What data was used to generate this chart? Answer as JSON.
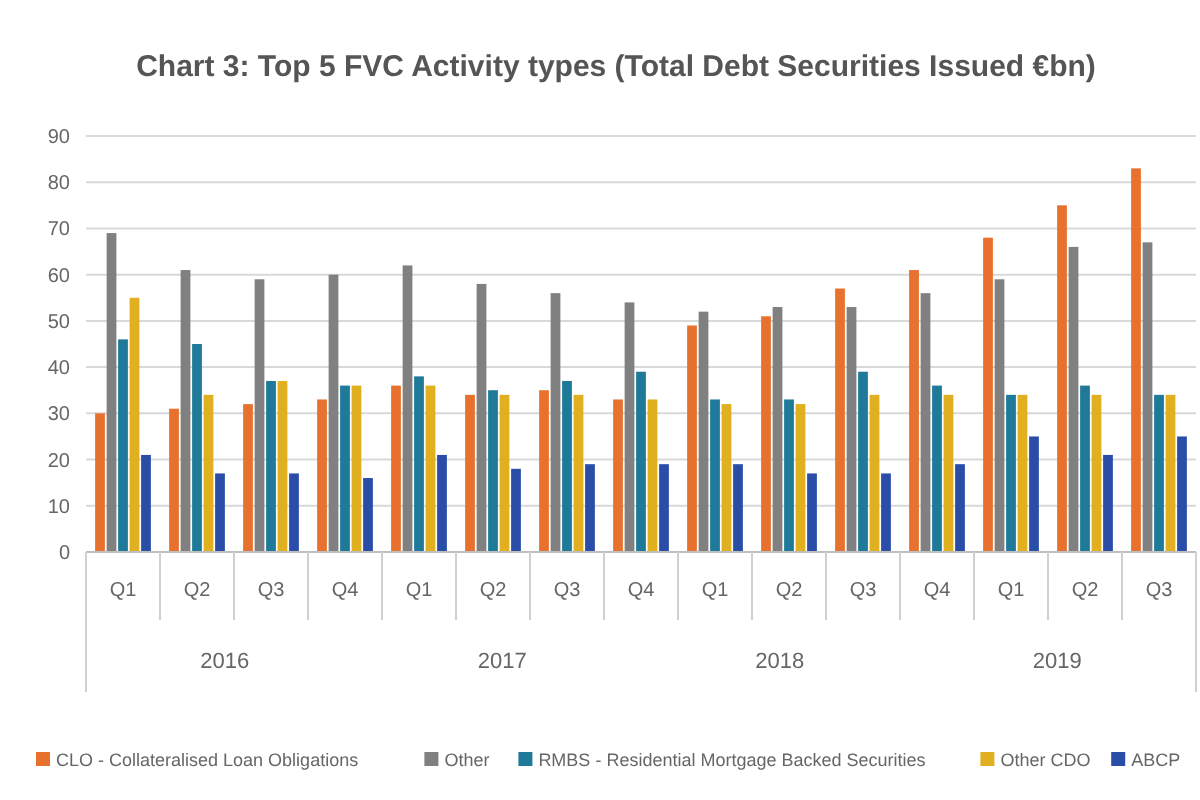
{
  "chart_data": {
    "type": "bar",
    "title": "Chart 3: Top 5 FVC Activity types (Total Debt Securities Issued €bn)",
    "categories": [
      "Q1",
      "Q2",
      "Q3",
      "Q4",
      "Q1",
      "Q2",
      "Q3",
      "Q4",
      "Q1",
      "Q2",
      "Q3",
      "Q4",
      "Q1",
      "Q2",
      "Q3"
    ],
    "annotations": [
      "2016",
      "2017",
      "2018",
      "2019"
    ],
    "series": [
      {
        "name": "CLO - Collateralised Loan Obligations",
        "color": "#e8712e",
        "values": [
          30,
          31,
          32,
          33,
          36,
          34,
          35,
          33,
          49,
          51,
          57,
          61,
          68,
          75,
          83
        ]
      },
      {
        "name": "Other",
        "color": "#808080",
        "values": [
          69,
          61,
          59,
          60,
          62,
          58,
          56,
          54,
          52,
          53,
          53,
          56,
          59,
          66,
          67
        ]
      },
      {
        "name": "RMBS - Residential Mortgage Backed Securities",
        "color": "#1f7a9a",
        "values": [
          46,
          45,
          37,
          36,
          38,
          35,
          37,
          39,
          33,
          33,
          39,
          36,
          34,
          36,
          34
        ]
      },
      {
        "name": "Other CDO",
        "color": "#e0b020",
        "values": [
          55,
          34,
          37,
          36,
          36,
          34,
          34,
          33,
          32,
          32,
          34,
          34,
          34,
          34,
          34
        ]
      },
      {
        "name": "ABCP",
        "color": "#2a4ea8",
        "values": [
          21,
          17,
          17,
          16,
          21,
          18,
          19,
          19,
          19,
          17,
          17,
          19,
          25,
          21,
          25
        ]
      }
    ],
    "ylim": [
      0,
      90
    ],
    "yticks": [
      0,
      10,
      20,
      30,
      40,
      50,
      60,
      70,
      80,
      90
    ],
    "grid": "y",
    "legend": "bottom"
  }
}
